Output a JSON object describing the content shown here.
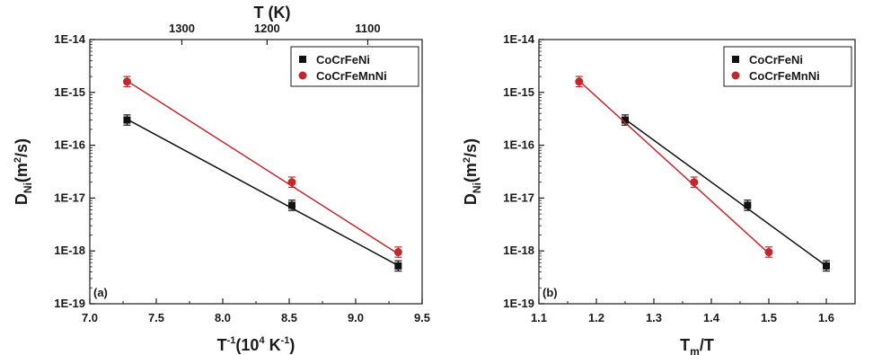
{
  "colors": {
    "cocrfeni": "#111111",
    "cocrfemnni": "#c0282d"
  },
  "chart_data": [
    {
      "type": "scatter",
      "panel_label": "(a)",
      "x_scale": "linear",
      "y_scale": "log",
      "xlabel": {
        "main": "T",
        "sup": "-1",
        "rest": "(10",
        "sup2": "4",
        "rest2": " K",
        "sup3": "-1",
        "tail": ")"
      },
      "ylabel": {
        "main": "D",
        "sub": "Ni",
        "rest": "(m",
        "sup": "2",
        "tail": "/s)"
      },
      "top_axis_label": "T (K)",
      "xlim": [
        7.0,
        9.5
      ],
      "ylim_exp": [
        -19,
        -14
      ],
      "x_ticks": [
        "7.0",
        "7.5",
        "8.0",
        "8.5",
        "9.0",
        "9.5"
      ],
      "y_ticks": [
        "1E-19",
        "1E-18",
        "1E-17",
        "1E-16",
        "1E-15",
        "1E-14"
      ],
      "top_ticks": [
        {
          "label": "1300",
          "T": 1300
        },
        {
          "label": "1200",
          "T": 1200
        },
        {
          "label": "1100",
          "T": 1100
        }
      ],
      "legend_position": "top-right",
      "series": [
        {
          "name": "CoCrFeNi",
          "marker": "square",
          "color_key": "cocrfeni",
          "x": [
            7.28,
            8.52,
            9.32
          ],
          "y": [
            3e-16,
            7.3e-18,
            5.2e-19
          ],
          "err_factor": 1.25,
          "fit": [
            [
              7.28,
              3.1e-16
            ],
            [
              9.32,
              5.3e-19
            ]
          ]
        },
        {
          "name": "CoCrFeMnNi",
          "marker": "circle",
          "color_key": "cocrfemnni",
          "x": [
            7.28,
            8.52,
            9.32
          ],
          "y": [
            1.6e-15,
            2e-17,
            9.5e-19
          ],
          "err_factor": 1.25,
          "fit": [
            [
              7.28,
              1.65e-15
            ],
            [
              9.32,
              8.8e-19
            ]
          ]
        }
      ]
    },
    {
      "type": "scatter",
      "panel_label": "(b)",
      "x_scale": "linear",
      "y_scale": "log",
      "xlabel": {
        "main": "T",
        "sub": "m",
        "tail": "/T"
      },
      "ylabel": {
        "main": "D",
        "sub": "Ni",
        "rest": "(m",
        "sup": "2",
        "tail": "/s)"
      },
      "xlim": [
        1.1,
        1.65
      ],
      "ylim_exp": [
        -19,
        -14
      ],
      "x_ticks": [
        "1.1",
        "1.2",
        "1.3",
        "1.4",
        "1.5",
        "1.6"
      ],
      "y_ticks": [
        "1E-19",
        "1E-18",
        "1E-17",
        "1E-16",
        "1E-15",
        "1E-14"
      ],
      "legend_position": "top-right",
      "series": [
        {
          "name": "CoCrFeNi",
          "marker": "square",
          "color_key": "cocrfeni",
          "x": [
            1.25,
            1.463,
            1.6
          ],
          "y": [
            3e-16,
            7.3e-18,
            5.2e-19
          ],
          "err_factor": 1.25,
          "fit": [
            [
              1.25,
              3.1e-16
            ],
            [
              1.6,
              5.2e-19
            ]
          ]
        },
        {
          "name": "CoCrFeMnNi",
          "marker": "circle",
          "color_key": "cocrfemnni",
          "x": [
            1.17,
            1.37,
            1.5
          ],
          "y": [
            1.6e-15,
            2e-17,
            9.5e-19
          ],
          "err_factor": 1.25,
          "fit": [
            [
              1.17,
              1.65e-15
            ],
            [
              1.5,
              9e-19
            ]
          ]
        }
      ]
    }
  ]
}
